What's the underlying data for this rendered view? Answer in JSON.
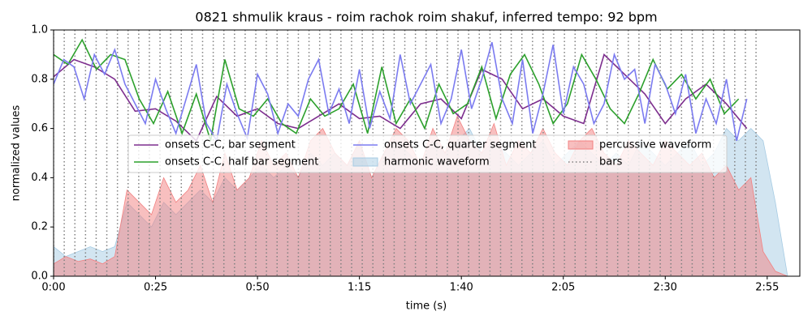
{
  "chart_data": {
    "type": "line",
    "title": "0821 shmulik kraus - roim rachok roim shakuf, inferred tempo: 92 bpm",
    "xlabel": "time (s)",
    "ylabel": "normalized values",
    "xlim": [
      0,
      183
    ],
    "ylim": [
      0,
      1
    ],
    "xticks": [
      {
        "value": 0,
        "label": "0:00"
      },
      {
        "value": 25,
        "label": "0:25"
      },
      {
        "value": 50,
        "label": "0:50"
      },
      {
        "value": 75,
        "label": "1:15"
      },
      {
        "value": 100,
        "label": "1:40"
      },
      {
        "value": 125,
        "label": "2:05"
      },
      {
        "value": 150,
        "label": "2:30"
      },
      {
        "value": 175,
        "label": "2:55"
      }
    ],
    "yticks": [
      {
        "value": 0,
        "label": "0.0"
      },
      {
        "value": 0.2,
        "label": "0.2"
      },
      {
        "value": 0.4,
        "label": "0.4"
      },
      {
        "value": 0.6,
        "label": "0.6"
      },
      {
        "value": 0.8,
        "label": "0.8"
      },
      {
        "value": 1,
        "label": "1.0"
      }
    ],
    "legend": "center",
    "series": [
      {
        "name": "onsets C-C, bar segment",
        "type": "line",
        "color": "#7d2e8e",
        "x": [
          0,
          5,
          10,
          15,
          20,
          25,
          30,
          35,
          40,
          45,
          50,
          55,
          60,
          65,
          70,
          75,
          80,
          85,
          90,
          95,
          100,
          105,
          110,
          115,
          120,
          125,
          130,
          135,
          140,
          145,
          150,
          155,
          160,
          165,
          170
        ],
        "values": [
          0.81,
          0.88,
          0.85,
          0.8,
          0.67,
          0.68,
          0.63,
          0.55,
          0.73,
          0.65,
          0.68,
          0.62,
          0.6,
          0.65,
          0.7,
          0.64,
          0.65,
          0.6,
          0.7,
          0.72,
          0.64,
          0.84,
          0.8,
          0.68,
          0.72,
          0.65,
          0.62,
          0.9,
          0.82,
          0.74,
          0.62,
          0.72,
          0.78,
          0.7,
          0.6
        ]
      },
      {
        "name": "onsets C-C, half bar segment",
        "type": "line",
        "color": "#2ca02c",
        "x": [
          0,
          3.5,
          7,
          10.5,
          14,
          17.5,
          21,
          24.5,
          28,
          31.5,
          35,
          38.5,
          42,
          45.5,
          49,
          52.5,
          56,
          59.5,
          63,
          66.5,
          70,
          73.5,
          77,
          80.5,
          84,
          87.5,
          91,
          94.5,
          98,
          101.5,
          105,
          108.5,
          112,
          115.5,
          119,
          122.5,
          126,
          129.5,
          133,
          136.5,
          140,
          143.5,
          147,
          150.5,
          154,
          157.5,
          161,
          164.5,
          168
        ],
        "values": [
          0.9,
          0.86,
          0.96,
          0.84,
          0.9,
          0.88,
          0.72,
          0.62,
          0.75,
          0.58,
          0.74,
          0.55,
          0.88,
          0.68,
          0.65,
          0.72,
          0.62,
          0.58,
          0.72,
          0.65,
          0.68,
          0.78,
          0.58,
          0.85,
          0.62,
          0.72,
          0.6,
          0.78,
          0.66,
          0.7,
          0.85,
          0.64,
          0.82,
          0.9,
          0.78,
          0.62,
          0.7,
          0.9,
          0.8,
          0.68,
          0.62,
          0.74,
          0.88,
          0.76,
          0.82,
          0.72,
          0.8,
          0.66,
          0.72
        ]
      },
      {
        "name": "onsets C-C, quarter segment",
        "type": "line",
        "color": "#7b7bf0",
        "x": [
          0,
          2.5,
          5,
          7.5,
          10,
          12.5,
          15,
          17.5,
          20,
          22.5,
          25,
          27.5,
          30,
          32.5,
          35,
          37.5,
          40,
          42.5,
          45,
          47.5,
          50,
          52.5,
          55,
          57.5,
          60,
          62.5,
          65,
          67.5,
          70,
          72.5,
          75,
          77.5,
          80,
          82.5,
          85,
          87.5,
          90,
          92.5,
          95,
          97.5,
          100,
          102.5,
          105,
          107.5,
          110,
          112.5,
          115,
          117.5,
          120,
          122.5,
          125,
          127.5,
          130,
          132.5,
          135,
          137.5,
          140,
          142.5,
          145,
          147.5,
          150,
          152.5,
          155,
          157.5,
          160,
          162.5,
          165,
          167.5,
          170
        ],
        "values": [
          0.78,
          0.88,
          0.85,
          0.72,
          0.9,
          0.82,
          0.92,
          0.78,
          0.7,
          0.62,
          0.8,
          0.68,
          0.58,
          0.72,
          0.86,
          0.62,
          0.55,
          0.78,
          0.66,
          0.56,
          0.82,
          0.74,
          0.58,
          0.7,
          0.65,
          0.8,
          0.88,
          0.66,
          0.76,
          0.62,
          0.84,
          0.6,
          0.75,
          0.64,
          0.9,
          0.7,
          0.78,
          0.86,
          0.62,
          0.72,
          0.92,
          0.68,
          0.8,
          0.95,
          0.72,
          0.62,
          0.88,
          0.58,
          0.74,
          0.94,
          0.66,
          0.85,
          0.78,
          0.62,
          0.7,
          0.9,
          0.8,
          0.84,
          0.62,
          0.86,
          0.78,
          0.66,
          0.82,
          0.58,
          0.72,
          0.62,
          0.8,
          0.55,
          0.72
        ]
      },
      {
        "name": "harmonic waveform",
        "type": "area",
        "color": "#a6cbe3",
        "x": [
          0,
          3,
          6,
          9,
          12,
          15,
          18,
          21,
          24,
          27,
          30,
          33,
          36,
          39,
          42,
          45,
          48,
          51,
          54,
          57,
          60,
          63,
          66,
          69,
          72,
          75,
          78,
          81,
          84,
          87,
          90,
          93,
          96,
          99,
          102,
          105,
          108,
          111,
          114,
          117,
          120,
          123,
          126,
          129,
          132,
          135,
          138,
          141,
          144,
          147,
          150,
          153,
          156,
          159,
          162,
          165,
          168,
          171,
          174,
          177,
          180
        ],
        "values": [
          0.12,
          0.08,
          0.1,
          0.12,
          0.1,
          0.12,
          0.3,
          0.25,
          0.2,
          0.3,
          0.25,
          0.3,
          0.35,
          0.3,
          0.4,
          0.35,
          0.4,
          0.45,
          0.4,
          0.45,
          0.4,
          0.5,
          0.45,
          0.5,
          0.45,
          0.55,
          0.4,
          0.5,
          0.55,
          0.5,
          0.45,
          0.55,
          0.5,
          0.55,
          0.6,
          0.5,
          0.55,
          0.5,
          0.45,
          0.5,
          0.55,
          0.45,
          0.5,
          0.55,
          0.5,
          0.45,
          0.5,
          0.45,
          0.55,
          0.5,
          0.45,
          0.5,
          0.55,
          0.45,
          0.5,
          0.6,
          0.55,
          0.6,
          0.55,
          0.3,
          0.0
        ]
      },
      {
        "name": "percussive waveform",
        "type": "area",
        "color": "#f28080",
        "x": [
          0,
          3,
          6,
          9,
          12,
          15,
          18,
          21,
          24,
          27,
          30,
          33,
          36,
          39,
          42,
          45,
          48,
          51,
          54,
          57,
          60,
          63,
          66,
          69,
          72,
          75,
          78,
          81,
          84,
          87,
          90,
          93,
          96,
          99,
          102,
          105,
          108,
          111,
          114,
          117,
          120,
          123,
          126,
          129,
          132,
          135,
          138,
          141,
          144,
          147,
          150,
          153,
          156,
          159,
          162,
          165,
          168,
          171,
          174,
          177,
          180
        ],
        "values": [
          0.05,
          0.08,
          0.06,
          0.07,
          0.05,
          0.08,
          0.35,
          0.3,
          0.25,
          0.4,
          0.3,
          0.35,
          0.45,
          0.3,
          0.5,
          0.35,
          0.4,
          0.55,
          0.45,
          0.5,
          0.4,
          0.55,
          0.6,
          0.5,
          0.45,
          0.55,
          0.4,
          0.5,
          0.6,
          0.55,
          0.45,
          0.6,
          0.5,
          0.65,
          0.55,
          0.5,
          0.62,
          0.45,
          0.55,
          0.5,
          0.6,
          0.5,
          0.45,
          0.55,
          0.6,
          0.5,
          0.45,
          0.55,
          0.5,
          0.45,
          0.55,
          0.5,
          0.45,
          0.5,
          0.4,
          0.45,
          0.35,
          0.4,
          0.1,
          0.02,
          0.0
        ]
      },
      {
        "name": "bars",
        "type": "vline",
        "color": "#808080",
        "x": [
          0,
          2.61,
          5.22,
          7.83,
          10.44,
          13.05,
          15.66,
          18.27,
          20.88,
          23.49,
          26.1,
          28.71,
          31.32,
          33.93,
          36.54,
          39.15,
          41.76,
          44.37,
          46.98,
          49.59,
          52.2,
          54.81,
          57.42,
          60.03,
          62.64,
          65.25,
          67.86,
          70.47,
          73.08,
          75.69,
          78.3,
          80.91,
          83.52,
          86.13,
          88.74,
          91.35,
          93.96,
          96.57,
          99.18,
          101.79,
          104.4,
          107.01,
          109.62,
          112.23,
          114.84,
          117.45,
          120.06,
          122.67,
          125.28,
          127.89,
          130.5,
          133.11,
          135.72,
          138.33,
          140.94,
          143.55,
          146.16,
          148.77,
          151.38,
          153.99,
          156.6,
          159.21,
          161.82,
          164.43,
          167.04,
          169.65,
          172.26
        ]
      }
    ]
  }
}
